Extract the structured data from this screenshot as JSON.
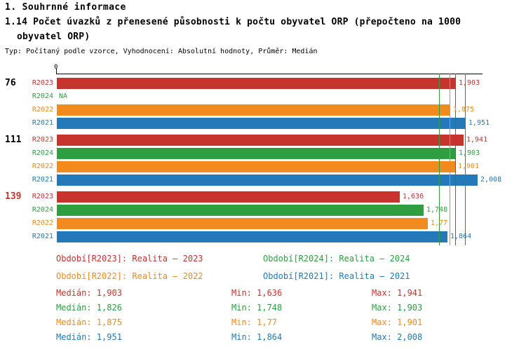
{
  "header": {
    "title": "1. Souhrnné informace",
    "subtitle_line1": "1.14 Počet úvazků z přenesené působnosti k počtu obyvatel ORP (přepočteno na 1000",
    "subtitle_line2": "obyvatel ORP)",
    "meta": "Typ: Počítaný podle vzorce, Vyhodnocení: Absolutní hodnoty, Průměr: Medián"
  },
  "colors": {
    "r2023": "#c7342e",
    "r2024": "#2f9e41",
    "r2022": "#f28a1d",
    "r2021": "#2679b8",
    "axis": "#000000"
  },
  "chart_data": {
    "type": "bar",
    "orientation": "horizontal",
    "x_axis": {
      "origin_label": "0",
      "min": 0,
      "max": 2.05
    },
    "series_order": [
      "R2023",
      "R2024",
      "R2022",
      "R2021"
    ],
    "groups": [
      {
        "label": "76",
        "label_color": "#000000",
        "bars": [
          {
            "series": "R2023",
            "value": 1.903,
            "display": "1,903"
          },
          {
            "series": "R2024",
            "value": null,
            "display": "NA"
          },
          {
            "series": "R2022",
            "value": 1.875,
            "display": "1,875"
          },
          {
            "series": "R2021",
            "value": 1.951,
            "display": "1,951"
          }
        ]
      },
      {
        "label": "111",
        "label_color": "#000000",
        "bars": [
          {
            "series": "R2023",
            "value": 1.941,
            "display": "1,941"
          },
          {
            "series": "R2024",
            "value": 1.903,
            "display": "1,903"
          },
          {
            "series": "R2022",
            "value": 1.901,
            "display": "1,901"
          },
          {
            "series": "R2021",
            "value": 2.008,
            "display": "2,008"
          }
        ]
      },
      {
        "label": "139",
        "label_color": "#c7342e",
        "bars": [
          {
            "series": "R2023",
            "value": 1.636,
            "display": "1,636"
          },
          {
            "series": "R2024",
            "value": 1.748,
            "display": "1,748"
          },
          {
            "series": "R2022",
            "value": 1.77,
            "display": "1,77"
          },
          {
            "series": "R2021",
            "value": 1.864,
            "display": "1,864"
          }
        ]
      }
    ],
    "reference_lines": [
      {
        "series": "R2024",
        "value": 1.826
      },
      {
        "series": "R2022",
        "value": 1.875
      },
      {
        "series": "R2023",
        "value": 1.903
      },
      {
        "series": "R2021",
        "value": 1.951
      }
    ]
  },
  "legend": {
    "items": [
      {
        "series": "R2023",
        "label": "Období[R2023]: Realita – 2023"
      },
      {
        "series": "R2024",
        "label": "Období[R2024]: Realita – 2024"
      },
      {
        "series": "R2022",
        "label": "Období[R2022]: Realita – 2022"
      },
      {
        "series": "R2021",
        "label": "Období[R2021]: Realita – 2021"
      }
    ]
  },
  "stats": {
    "rows": [
      {
        "series": "R2023",
        "median": "Medián: 1,903",
        "min": "Min: 1,636",
        "max": "Max: 1,941"
      },
      {
        "series": "R2024",
        "median": "Medián: 1,826",
        "min": "Min: 1,748",
        "max": "Max: 1,903"
      },
      {
        "series": "R2022",
        "median": "Medián: 1,875",
        "min": "Min: 1,77",
        "max": "Max: 1,901"
      },
      {
        "series": "R2021",
        "median": "Medián: 1,951",
        "min": "Min: 1,864",
        "max": "Max: 2,008"
      }
    ]
  }
}
